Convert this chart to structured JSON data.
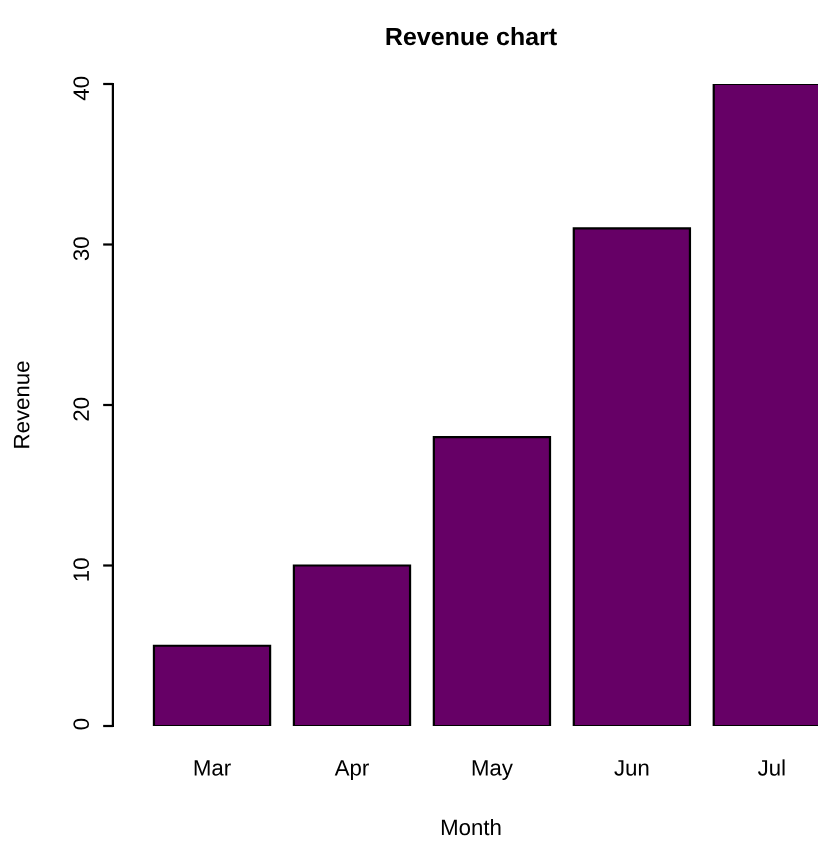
{
  "chart_data": {
    "type": "bar",
    "title": "Revenue chart",
    "xlabel": "Month",
    "ylabel": "Revenue",
    "categories": [
      "Mar",
      "Apr",
      "May",
      "Jun",
      "Jul"
    ],
    "values": [
      5,
      10,
      18,
      31,
      40
    ],
    "color": "#660066",
    "ylim": [
      0,
      40
    ],
    "yticks": [
      0,
      10,
      20,
      30,
      40
    ],
    "grid": false,
    "legend": false
  }
}
